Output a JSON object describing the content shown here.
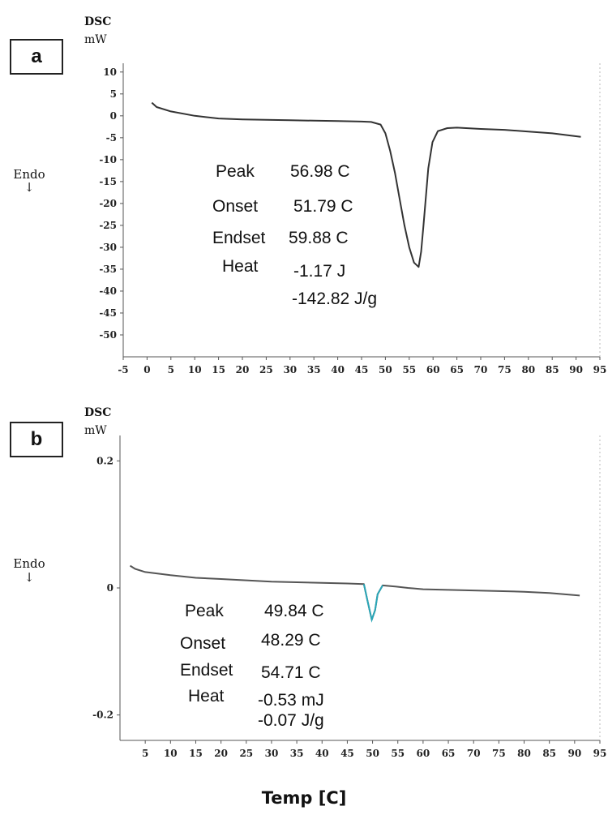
{
  "chart_data": [
    {
      "type": "line",
      "panel_label": "a",
      "ylabel_line1": "DSC",
      "ylabel_line2": "mW",
      "endo_label": "Endo",
      "endo_arrow": "↓",
      "xlim": [
        -5,
        95
      ],
      "ylim": [
        -55,
        12
      ],
      "xticks": [
        -5,
        0,
        5,
        10,
        15,
        20,
        25,
        30,
        35,
        40,
        45,
        50,
        55,
        60,
        65,
        70,
        75,
        80,
        85,
        90,
        95
      ],
      "yticks": [
        10,
        5,
        0,
        -5,
        -10,
        -15,
        -20,
        -25,
        -30,
        -35,
        -40,
        -45,
        -50
      ],
      "series": [
        {
          "x": [
            1,
            2,
            5,
            10,
            15,
            20,
            25,
            30,
            35,
            40,
            45,
            47,
            49,
            50,
            51,
            52,
            53,
            54,
            55,
            56,
            56.98,
            57.5,
            58,
            59,
            59.88,
            61,
            63,
            65,
            70,
            75,
            80,
            85,
            91
          ],
          "y": [
            3,
            2,
            1,
            0,
            -0.6,
            -0.8,
            -0.9,
            -1.0,
            -1.1,
            -1.2,
            -1.3,
            -1.4,
            -2.0,
            -4.0,
            -8,
            -13,
            -19,
            -25,
            -30,
            -33.5,
            -34.5,
            -31,
            -25,
            -12,
            -6,
            -3.5,
            -2.8,
            -2.7,
            -3.0,
            -3.2,
            -3.6,
            -4.0,
            -4.8
          ]
        }
      ],
      "annotations": {
        "peak_label": "Peak",
        "peak_value": "56.98 C",
        "onset_label": "Onset",
        "onset_value": "51.79 C",
        "endset_label": "Endset",
        "endset_value": "59.88 C",
        "heat_label": "Heat",
        "heat_value": "-1.17 J",
        "heat_specific": "-142.82 J/g"
      },
      "line_color": "#333333"
    },
    {
      "type": "line",
      "panel_label": "b",
      "ylabel_line1": "DSC",
      "ylabel_line2": "mW",
      "endo_label": "Endo",
      "endo_arrow": "↓",
      "xlim": [
        0,
        95
      ],
      "ylim": [
        -0.24,
        0.24
      ],
      "xticks": [
        5,
        10,
        15,
        20,
        25,
        30,
        35,
        40,
        45,
        50,
        55,
        60,
        65,
        70,
        75,
        80,
        85,
        90,
        95
      ],
      "yticks": [
        0.2,
        0,
        -0.2
      ],
      "series": [
        {
          "x": [
            2,
            3,
            5,
            10,
            15,
            20,
            25,
            30,
            35,
            40,
            45,
            48.29,
            49,
            49.84,
            50.5,
            51,
            52,
            54.71,
            57,
            60,
            65,
            70,
            75,
            80,
            85,
            91
          ],
          "y": [
            0.035,
            0.03,
            0.025,
            0.02,
            0.016,
            0.014,
            0.012,
            0.01,
            0.009,
            0.008,
            0.007,
            0.006,
            -0.02,
            -0.05,
            -0.035,
            -0.01,
            0.004,
            0.002,
            0.0,
            -0.002,
            -0.003,
            -0.004,
            -0.005,
            -0.006,
            -0.008,
            -0.012
          ]
        }
      ],
      "annotations": {
        "peak_label": "Peak",
        "peak_value": "49.84 C",
        "onset_label": "Onset",
        "onset_value": "48.29 C",
        "endset_label": "Endset",
        "endset_value": "54.71 C",
        "heat_label": "Heat",
        "heat_value": "-0.53 mJ",
        "heat_specific": "-0.07 J/g"
      },
      "line_color": "#555555",
      "peak_color": "#2aa7b8"
    }
  ],
  "xlabel": "Temp [C]"
}
